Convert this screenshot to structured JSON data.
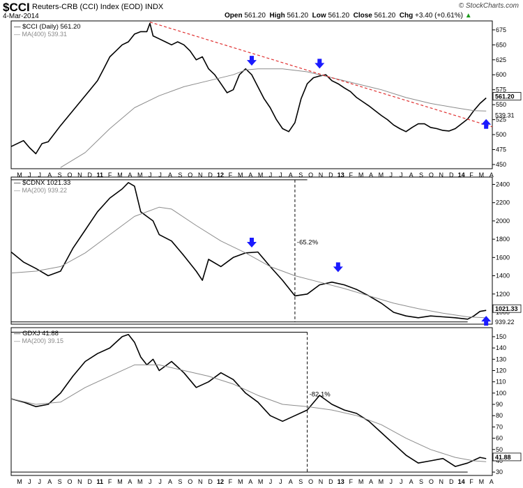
{
  "header": {
    "symbol": "$CCI",
    "index_name": "Reuters-CRB (CCI) Index (EOD)",
    "exchange": "INDX",
    "date": "4-Mar-2014",
    "open_label": "Open",
    "open_value": "561.20",
    "high_label": "High",
    "high_value": "561.20",
    "low_label": "Low",
    "low_value": "561.20",
    "close_label": "Close",
    "close_value": "561.20",
    "chg_label": "Chg",
    "chg_value": "+3.40 (+0.61%)",
    "chg_marker": "▲",
    "logo": "© StockCharts.com"
  },
  "colors": {
    "price_line": "#000000",
    "ma_line": "#8c8c8c",
    "trend_line": "#e03030",
    "arrow": "#1a1aff",
    "frame": "#000000"
  },
  "chart_data": [
    {
      "type": "line",
      "legend": [
        "$CCI (Daily) 561.20",
        "MA(400) 539.31"
      ],
      "y_ticks": [
        "675",
        "650",
        "625",
        "600",
        "575",
        "550",
        "525",
        "500",
        "475",
        "450"
      ],
      "ylim": [
        443,
        690
      ],
      "last_labels": [
        "561.20",
        "539.31"
      ],
      "x_tick_labels": [
        "M",
        "J",
        "J",
        "A",
        "S",
        "O",
        "N",
        "D",
        "11",
        "F",
        "M",
        "A",
        "M",
        "J",
        "J",
        "A",
        "S",
        "O",
        "N",
        "D",
        "12",
        "F",
        "M",
        "A",
        "M",
        "J",
        "J",
        "A",
        "S",
        "O",
        "N",
        "D",
        "13",
        "F",
        "M",
        "A",
        "M",
        "J",
        "J",
        "A",
        "S",
        "O",
        "N",
        "D",
        "14",
        "F",
        "M",
        "A"
      ],
      "series": [
        {
          "name": "$CCI (Daily) 561.20",
          "points": [
            [
              0,
              480
            ],
            [
              2,
              490
            ],
            [
              3,
              478
            ],
            [
              4,
              468
            ],
            [
              5,
              485
            ],
            [
              6,
              488
            ],
            [
              8,
              515
            ],
            [
              10,
              540
            ],
            [
              12,
              565
            ],
            [
              14,
              590
            ],
            [
              15,
              610
            ],
            [
              16,
              630
            ],
            [
              17,
              640
            ],
            [
              18,
              650
            ],
            [
              19,
              655
            ],
            [
              20,
              668
            ],
            [
              21,
              672
            ],
            [
              22,
              672
            ],
            [
              22.5,
              686
            ],
            [
              23,
              665
            ],
            [
              24,
              660
            ],
            [
              25,
              655
            ],
            [
              26,
              650
            ],
            [
              27,
              655
            ],
            [
              28,
              650
            ],
            [
              29,
              640
            ],
            [
              30,
              625
            ],
            [
              31,
              630
            ],
            [
              32,
              610
            ],
            [
              33,
              600
            ],
            [
              34,
              585
            ],
            [
              35,
              570
            ],
            [
              36,
              575
            ],
            [
              37,
              600
            ],
            [
              38,
              610
            ],
            [
              39,
              600
            ],
            [
              40,
              580
            ],
            [
              41,
              560
            ],
            [
              42,
              545
            ],
            [
              43,
              525
            ],
            [
              44,
              510
            ],
            [
              45,
              505
            ],
            [
              46,
              520
            ],
            [
              47,
              560
            ],
            [
              48,
              585
            ],
            [
              49,
              595
            ],
            [
              50,
              598
            ],
            [
              51,
              600
            ],
            [
              52,
              590
            ],
            [
              53,
              585
            ],
            [
              54,
              578
            ],
            [
              55,
              572
            ],
            [
              56,
              562
            ],
            [
              57,
              555
            ],
            [
              58,
              548
            ],
            [
              59,
              540
            ],
            [
              60,
              532
            ],
            [
              61,
              525
            ],
            [
              62,
              516
            ],
            [
              63,
              510
            ],
            [
              64,
              505
            ],
            [
              65,
              512
            ],
            [
              66,
              518
            ],
            [
              67,
              518
            ],
            [
              68,
              512
            ],
            [
              69,
              510
            ],
            [
              70,
              507
            ],
            [
              71,
              506
            ],
            [
              72,
              510
            ],
            [
              73,
              518
            ],
            [
              74,
              526
            ],
            [
              75,
              540
            ],
            [
              76,
              552
            ],
            [
              77,
              561.2
            ]
          ]
        },
        {
          "name": "MA(400) 539.31",
          "points": [
            [
              8,
              445
            ],
            [
              12,
              470
            ],
            [
              16,
              510
            ],
            [
              20,
              545
            ],
            [
              24,
              565
            ],
            [
              28,
              580
            ],
            [
              32,
              590
            ],
            [
              36,
              600
            ],
            [
              38,
              608
            ],
            [
              40,
              610
            ],
            [
              44,
              610
            ],
            [
              48,
              605
            ],
            [
              52,
              595
            ],
            [
              56,
              585
            ],
            [
              60,
              575
            ],
            [
              64,
              562
            ],
            [
              68,
              552
            ],
            [
              72,
              545
            ],
            [
              75,
              540
            ],
            [
              77,
              539.31
            ]
          ]
        },
        {
          "name": "trend",
          "points": [
            [
              22.5,
              688
            ],
            [
              78,
              513
            ]
          ]
        }
      ],
      "arrows_down": [
        [
          39,
          620
        ],
        [
          50,
          615
        ]
      ],
      "arrows_up": [
        [
          77,
          519
        ]
      ]
    },
    {
      "type": "line",
      "legend": [
        "$CDNX 1021.33",
        "MA(200) 939.22"
      ],
      "y_ticks": [
        "2400",
        "2200",
        "2000",
        "1800",
        "1600",
        "1400",
        "1200",
        "1000"
      ],
      "ylim": [
        870,
        2480
      ],
      "last_labels": [
        "1021.33",
        "939.22"
      ],
      "annotation": "-65.2%",
      "hline_top": 2450,
      "hline_bottom": 895,
      "dashed_x": 46,
      "x_tick_labels": [
        "M",
        "J",
        "J",
        "A",
        "S",
        "O",
        "N",
        "D",
        "11",
        "F",
        "M",
        "A",
        "M",
        "J",
        "J",
        "A",
        "S",
        "O",
        "N",
        "D",
        "12",
        "F",
        "M",
        "A",
        "M",
        "J",
        "J",
        "A",
        "S",
        "O",
        "N",
        "D",
        "13",
        "F",
        "M",
        "A",
        "M",
        "J",
        "J",
        "A",
        "S",
        "O",
        "N",
        "D",
        "14",
        "F",
        "M",
        "A"
      ],
      "series": [
        {
          "name": "$CDNX 1021.33",
          "points": [
            [
              0,
              1660
            ],
            [
              2,
              1550
            ],
            [
              4,
              1480
            ],
            [
              6,
              1400
            ],
            [
              8,
              1450
            ],
            [
              10,
              1700
            ],
            [
              12,
              1900
            ],
            [
              14,
              2100
            ],
            [
              16,
              2250
            ],
            [
              18,
              2350
            ],
            [
              19,
              2420
            ],
            [
              20,
              2380
            ],
            [
              21,
              2100
            ],
            [
              22,
              2050
            ],
            [
              23,
              2000
            ],
            [
              24,
              1850
            ],
            [
              26,
              1780
            ],
            [
              28,
              1620
            ],
            [
              30,
              1450
            ],
            [
              31,
              1350
            ],
            [
              32,
              1580
            ],
            [
              34,
              1500
            ],
            [
              36,
              1600
            ],
            [
              38,
              1650
            ],
            [
              40,
              1660
            ],
            [
              42,
              1500
            ],
            [
              44,
              1350
            ],
            [
              46,
              1180
            ],
            [
              48,
              1200
            ],
            [
              50,
              1300
            ],
            [
              52,
              1330
            ],
            [
              54,
              1300
            ],
            [
              56,
              1250
            ],
            [
              58,
              1180
            ],
            [
              60,
              1100
            ],
            [
              62,
              1000
            ],
            [
              64,
              960
            ],
            [
              66,
              940
            ],
            [
              68,
              960
            ],
            [
              70,
              950
            ],
            [
              72,
              940
            ],
            [
              74,
              925
            ],
            [
              75,
              960
            ],
            [
              76,
              1010
            ],
            [
              77,
              1021.33
            ]
          ]
        },
        {
          "name": "MA(200) 939.22",
          "points": [
            [
              0,
              1430
            ],
            [
              4,
              1450
            ],
            [
              8,
              1500
            ],
            [
              12,
              1650
            ],
            [
              16,
              1850
            ],
            [
              20,
              2050
            ],
            [
              24,
              2150
            ],
            [
              26,
              2130
            ],
            [
              30,
              1950
            ],
            [
              34,
              1780
            ],
            [
              38,
              1650
            ],
            [
              42,
              1500
            ],
            [
              46,
              1400
            ],
            [
              50,
              1330
            ],
            [
              54,
              1260
            ],
            [
              58,
              1180
            ],
            [
              62,
              1100
            ],
            [
              66,
              1040
            ],
            [
              70,
              990
            ],
            [
              74,
              950
            ],
            [
              77,
              939.22
            ]
          ]
        }
      ],
      "arrows_down": [
        [
          39,
          1740
        ],
        [
          53,
          1470
        ]
      ],
      "arrows_up": [
        [
          77,
          915
        ]
      ]
    },
    {
      "type": "line",
      "legend": [
        "GDXJ 41.88",
        "MA(200) 39.15"
      ],
      "y_ticks": [
        "150",
        "140",
        "130",
        "120",
        "110",
        "100",
        "90",
        "80",
        "70",
        "60",
        "50",
        "40",
        "30"
      ],
      "ylim": [
        27,
        158
      ],
      "last_labels": [
        "41.88"
      ],
      "annotation": "-82.1%",
      "hline_top": 154,
      "hline_bottom": 30,
      "dashed_x": 48,
      "x_tick_labels": [
        "M",
        "J",
        "J",
        "A",
        "S",
        "O",
        "N",
        "D",
        "11",
        "F",
        "M",
        "A",
        "M",
        "J",
        "J",
        "A",
        "S",
        "O",
        "N",
        "D",
        "12",
        "F",
        "M",
        "A",
        "M",
        "J",
        "J",
        "A",
        "S",
        "O",
        "N",
        "D",
        "13",
        "F",
        "M",
        "A",
        "M",
        "J",
        "J",
        "A",
        "S",
        "O",
        "N",
        "D",
        "14",
        "F",
        "M",
        "A"
      ],
      "series": [
        {
          "name": "GDXJ 41.88",
          "points": [
            [
              0,
              95
            ],
            [
              2,
              92
            ],
            [
              4,
              88
            ],
            [
              6,
              90
            ],
            [
              8,
              100
            ],
            [
              10,
              115
            ],
            [
              12,
              128
            ],
            [
              14,
              135
            ],
            [
              16,
              140
            ],
            [
              18,
              150
            ],
            [
              19,
              152
            ],
            [
              20,
              145
            ],
            [
              21,
              132
            ],
            [
              22,
              125
            ],
            [
              23,
              130
            ],
            [
              24,
              120
            ],
            [
              26,
              128
            ],
            [
              28,
              118
            ],
            [
              30,
              105
            ],
            [
              32,
              110
            ],
            [
              34,
              118
            ],
            [
              36,
              112
            ],
            [
              38,
              100
            ],
            [
              40,
              92
            ],
            [
              42,
              80
            ],
            [
              44,
              75
            ],
            [
              46,
              80
            ],
            [
              48,
              85
            ],
            [
              50,
              98
            ],
            [
              52,
              90
            ],
            [
              54,
              85
            ],
            [
              56,
              82
            ],
            [
              58,
              75
            ],
            [
              60,
              65
            ],
            [
              62,
              55
            ],
            [
              64,
              45
            ],
            [
              66,
              38
            ],
            [
              68,
              40
            ],
            [
              70,
              42
            ],
            [
              72,
              35
            ],
            [
              74,
              38
            ],
            [
              76,
              43
            ],
            [
              77,
              41.88
            ]
          ]
        },
        {
          "name": "MA(200) 39.15",
          "points": [
            [
              0,
              95
            ],
            [
              4,
              90
            ],
            [
              8,
              92
            ],
            [
              12,
              105
            ],
            [
              16,
              115
            ],
            [
              20,
              125
            ],
            [
              24,
              125
            ],
            [
              28,
              120
            ],
            [
              32,
              115
            ],
            [
              36,
              108
            ],
            [
              40,
              98
            ],
            [
              44,
              90
            ],
            [
              48,
              88
            ],
            [
              52,
              85
            ],
            [
              56,
              80
            ],
            [
              60,
              72
            ],
            [
              64,
              60
            ],
            [
              68,
              50
            ],
            [
              72,
              43
            ],
            [
              75,
              40
            ],
            [
              77,
              39.15
            ]
          ]
        }
      ],
      "arrows_down": [],
      "arrows_up": []
    }
  ]
}
